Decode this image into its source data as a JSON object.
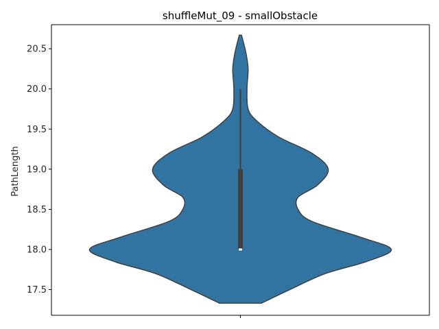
{
  "chart_data": {
    "type": "violin",
    "title": "shuffleMut_09 - smallObstacle",
    "xlabel": "",
    "ylabel": "PathLength",
    "ylim": [
      17.18,
      20.8
    ],
    "yticks": [
      "17.5",
      "18.0",
      "18.5",
      "19.0",
      "19.5",
      "20.0",
      "20.5"
    ],
    "x_categories": [
      ""
    ],
    "grid": false,
    "colors": {
      "violin_fill": "#3274a1",
      "violin_edge": "#3f3f3f",
      "box": "#3f3f3f",
      "median": "#ffffff"
    },
    "series": [
      {
        "values_range": [
          17.33,
          20.67
        ],
        "density_profile": [
          {
            "y": 17.33,
            "half_width": 0.38
          },
          {
            "y": 17.5,
            "half_width": 0.9
          },
          {
            "y": 17.7,
            "half_width": 1.55
          },
          {
            "y": 17.85,
            "half_width": 2.3
          },
          {
            "y": 18.0,
            "half_width": 2.75
          },
          {
            "y": 18.15,
            "half_width": 2.2
          },
          {
            "y": 18.35,
            "half_width": 1.3
          },
          {
            "y": 18.5,
            "half_width": 1.05
          },
          {
            "y": 18.65,
            "half_width": 1.05
          },
          {
            "y": 18.8,
            "half_width": 1.4
          },
          {
            "y": 19.0,
            "half_width": 1.6
          },
          {
            "y": 19.2,
            "half_width": 1.3
          },
          {
            "y": 19.4,
            "half_width": 0.7
          },
          {
            "y": 19.6,
            "half_width": 0.3
          },
          {
            "y": 19.75,
            "half_width": 0.14
          },
          {
            "y": 20.0,
            "half_width": 0.12
          },
          {
            "y": 20.25,
            "half_width": 0.14
          },
          {
            "y": 20.45,
            "half_width": 0.1
          },
          {
            "y": 20.67,
            "half_width": 0.02
          }
        ],
        "box": {
          "q1": 18.0,
          "median": 18.0,
          "q3": 19.0,
          "whisker_low": 18.0,
          "whisker_high": 20.0
        }
      }
    ]
  }
}
